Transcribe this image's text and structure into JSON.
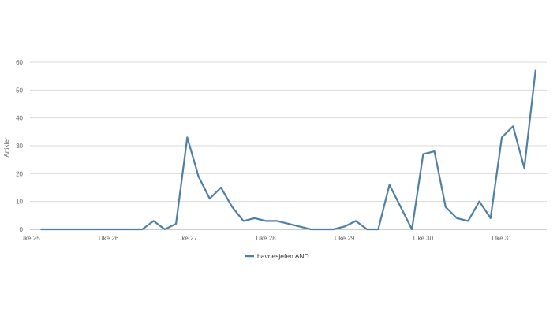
{
  "chart_data": {
    "type": "line",
    "title": "",
    "xlabel": "",
    "ylabel": "Artikler",
    "ylim": [
      0,
      60
    ],
    "yticks": [
      0,
      10,
      20,
      30,
      40,
      50,
      60
    ],
    "grid": true,
    "legend_position": "bottom-center",
    "x_axis_labels": [
      "Uke 25",
      "Uke 26",
      "Uke 27",
      "Uke 28",
      "Uke 29",
      "Uke 30",
      "Uke 31"
    ],
    "x_axis_label_days": [
      0,
      7,
      14,
      21,
      28,
      35,
      42
    ],
    "x_start_day": 0,
    "x_end_day": 46,
    "series": [
      {
        "name": "havnesjefen AND...",
        "color": "#4e7fa6",
        "x": [
          1,
          2,
          3,
          4,
          5,
          6,
          7,
          8,
          9,
          10,
          11,
          12,
          13,
          14,
          15,
          16,
          17,
          18,
          19,
          20,
          21,
          22,
          23,
          24,
          25,
          26,
          27,
          28,
          29,
          30,
          31,
          32,
          33,
          34,
          35,
          36,
          37,
          38,
          39,
          40,
          41,
          42,
          43,
          44,
          45,
          46
        ],
        "values": [
          0,
          0,
          0,
          0,
          0,
          0,
          0,
          0,
          0,
          0,
          3,
          0,
          2,
          33,
          19,
          11,
          15,
          8,
          3,
          4,
          3,
          3,
          2,
          1,
          0,
          0,
          0,
          1,
          3,
          0,
          0,
          16,
          8,
          0,
          27,
          28,
          8,
          4,
          3,
          10,
          4,
          33,
          37,
          22,
          57,
          null
        ]
      }
    ]
  }
}
